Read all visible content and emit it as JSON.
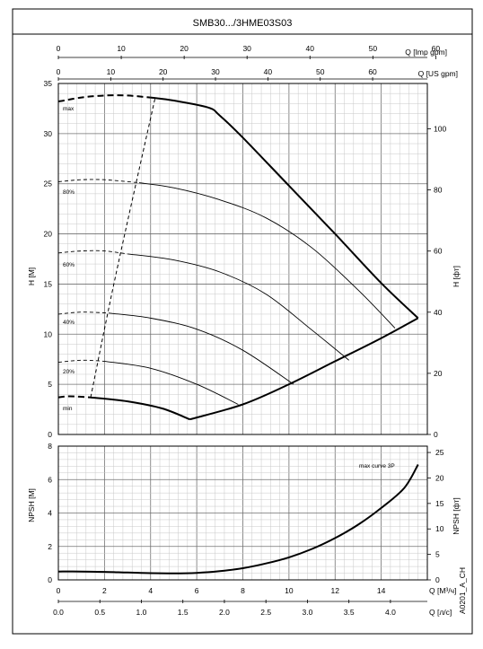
{
  "title": "SMB30.../3HME03S03",
  "code": "A0201_A_CH",
  "axes": {
    "imp_gpm_label": "Q [Imp gpm]",
    "imp_gpm_ticks": [
      "0",
      "10",
      "20",
      "30",
      "40",
      "50",
      "60"
    ],
    "us_gpm_label": "Q [US gpm]",
    "us_gpm_ticks": [
      "0",
      "10",
      "20",
      "30",
      "40",
      "50",
      "60"
    ],
    "h_label": "H [M]",
    "h_ticks": [
      "0",
      "5",
      "10",
      "15",
      "20",
      "25",
      "30",
      "35"
    ],
    "hft_label": "H [фт]",
    "hft_ticks": [
      "0",
      "20",
      "40",
      "60",
      "80",
      "100"
    ],
    "npsh_label": "NPSH [M]",
    "npsh_ticks": [
      "0",
      "2",
      "4",
      "6",
      "8"
    ],
    "npshft_label": "NPSH [фт]",
    "npshft_ticks": [
      "0",
      "5",
      "10",
      "15",
      "20",
      "25"
    ],
    "q_m3h_label": "Q [M³/ч]",
    "q_m3h_ticks": [
      "0",
      "2",
      "4",
      "6",
      "8",
      "10",
      "12",
      "14"
    ],
    "q_ls_label": "Q [л/с]",
    "q_ls_ticks": [
      "0.0",
      "0.5",
      "1.0",
      "1.5",
      "2.0",
      "2.5",
      "3.0",
      "3.5",
      "4.0"
    ]
  },
  "curve_labels": {
    "max": "max",
    "p80": "80%",
    "p60": "60%",
    "p40": "40%",
    "p20": "20%",
    "min": "min",
    "npsh": "max curve 3P"
  },
  "chart_data": [
    {
      "type": "line",
      "title": "SMB30.../3HME03S03",
      "xlabel": "Q [M³/ч]",
      "ylabel": "H [M]",
      "xlim": [
        0,
        16
      ],
      "ylim": [
        0,
        35
      ],
      "series": [
        {
          "name": "max",
          "x": [
            0,
            1,
            2,
            3,
            4
          ],
          "y": [
            33.2,
            33.6,
            33.8,
            33.8,
            33.6
          ],
          "style": "dashed"
        },
        {
          "name": "max",
          "x": [
            4,
            5,
            6.5,
            7,
            8,
            10,
            12,
            14,
            15.6
          ],
          "y": [
            33.6,
            33.3,
            32.6,
            31.8,
            29.6,
            24.8,
            20.0,
            15.1,
            11.6
          ],
          "style": "solid"
        },
        {
          "name": "80%",
          "x": [
            0,
            1,
            2,
            3.5
          ],
          "y": [
            25.2,
            25.4,
            25.4,
            25.1
          ],
          "style": "dashed"
        },
        {
          "name": "80%",
          "x": [
            3.5,
            5,
            7,
            9,
            11,
            13,
            14.6
          ],
          "y": [
            25.1,
            24.6,
            23.4,
            21.6,
            18.6,
            14.4,
            10.6
          ],
          "style": "solid"
        },
        {
          "name": "60%",
          "x": [
            0,
            1,
            2,
            3
          ],
          "y": [
            18.1,
            18.3,
            18.3,
            18.0
          ],
          "style": "dashed"
        },
        {
          "name": "60%",
          "x": [
            3,
            5,
            7,
            9,
            11,
            12.6
          ],
          "y": [
            18.0,
            17.4,
            16.2,
            14.0,
            10.4,
            7.4
          ],
          "style": "solid"
        },
        {
          "name": "40%",
          "x": [
            0,
            1,
            2.2
          ],
          "y": [
            12.0,
            12.2,
            12.1
          ],
          "style": "dashed"
        },
        {
          "name": "40%",
          "x": [
            2.2,
            4,
            6,
            8,
            10.2
          ],
          "y": [
            12.1,
            11.6,
            10.5,
            8.4,
            5.0
          ],
          "style": "solid"
        },
        {
          "name": "20%",
          "x": [
            0,
            1,
            2
          ],
          "y": [
            7.2,
            7.4,
            7.3
          ],
          "style": "dashed"
        },
        {
          "name": "20%",
          "x": [
            2,
            4,
            6,
            7.8
          ],
          "y": [
            7.3,
            6.6,
            5.0,
            3.0
          ],
          "style": "solid"
        },
        {
          "name": "min",
          "x": [
            0,
            0.5,
            1.4
          ],
          "y": [
            3.7,
            3.8,
            3.7
          ],
          "style": "dashed"
        },
        {
          "name": "min",
          "x": [
            1.4,
            3,
            4.5,
            5.7
          ],
          "y": [
            3.7,
            3.3,
            2.6,
            1.5
          ],
          "style": "solid"
        },
        {
          "name": "min",
          "x": [
            5.7,
            8,
            10,
            12,
            14,
            15.6
          ],
          "y": [
            1.5,
            3.0,
            5.0,
            7.3,
            9.6,
            11.6
          ],
          "style": "solid"
        },
        {
          "name": "",
          "x": [
            1.4,
            2.5,
            4.2
          ],
          "y": [
            3.7,
            16.0,
            33.6
          ],
          "style": "dashed"
        }
      ],
      "secondary_axes": {
        "top_imp_gpm": [
          0,
          60
        ],
        "top_us_gpm": [
          0,
          60
        ],
        "right_h_ft": [
          0,
          100
        ]
      },
      "grid": true
    },
    {
      "type": "line",
      "xlabel": "Q [M³/ч]",
      "ylabel": "NPSH [M]",
      "xlim": [
        0,
        16
      ],
      "ylim": [
        0,
        8
      ],
      "series": [
        {
          "name": "max curve 3P",
          "x": [
            0,
            1,
            2,
            3,
            4,
            5,
            6,
            7,
            8,
            9,
            10,
            11,
            12,
            13,
            14,
            15,
            15.6
          ],
          "y": [
            0.5,
            0.5,
            0.48,
            0.44,
            0.4,
            0.39,
            0.42,
            0.52,
            0.7,
            0.98,
            1.35,
            1.85,
            2.5,
            3.3,
            4.3,
            5.5,
            6.9
          ]
        }
      ],
      "secondary_axes": {
        "right_npsh_ft": [
          0,
          25
        ],
        "bottom_q_ls": [
          0,
          4
        ]
      },
      "grid": true
    }
  ]
}
